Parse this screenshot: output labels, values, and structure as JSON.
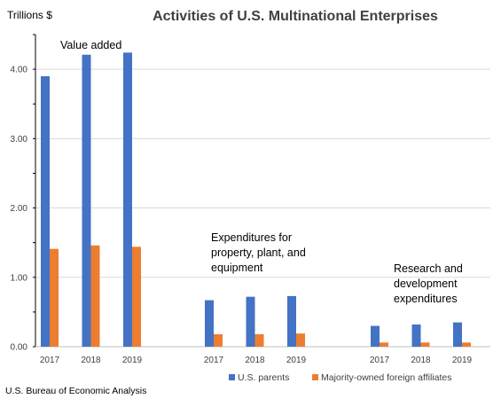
{
  "chart_data": {
    "type": "bar",
    "title": "Activities of U.S. Multinational Enterprises",
    "ylabel": "Trillions $",
    "ylim": [
      0,
      4.5
    ],
    "yticks": [
      "0.00",
      "1.00",
      "2.00",
      "3.00",
      "4.00"
    ],
    "grid": true,
    "legend_position": "bottom-right",
    "groups": [
      {
        "label": [
          "Value added"
        ],
        "categories": [
          "2017",
          "2018",
          "2019"
        ]
      },
      {
        "label": [
          "Expenditures for",
          "property, plant, and",
          "equipment"
        ],
        "categories": [
          "2017",
          "2018",
          "2019"
        ]
      },
      {
        "label": [
          "Research and",
          "development",
          "expenditures"
        ],
        "categories": [
          "2017",
          "2018",
          "2019"
        ]
      }
    ],
    "series": [
      {
        "name": "U.S. parents",
        "color": "#4472C4",
        "values": [
          [
            3.9,
            4.21,
            4.24
          ],
          [
            0.67,
            0.72,
            0.73
          ],
          [
            0.3,
            0.32,
            0.35
          ]
        ]
      },
      {
        "name": "Majority-owned foreign affiliates",
        "color": "#ED7D31",
        "values": [
          [
            1.41,
            1.46,
            1.44
          ],
          [
            0.18,
            0.18,
            0.19
          ],
          [
            0.06,
            0.06,
            0.06
          ]
        ]
      }
    ]
  },
  "source": "U.S. Bureau of Economic Analysis"
}
